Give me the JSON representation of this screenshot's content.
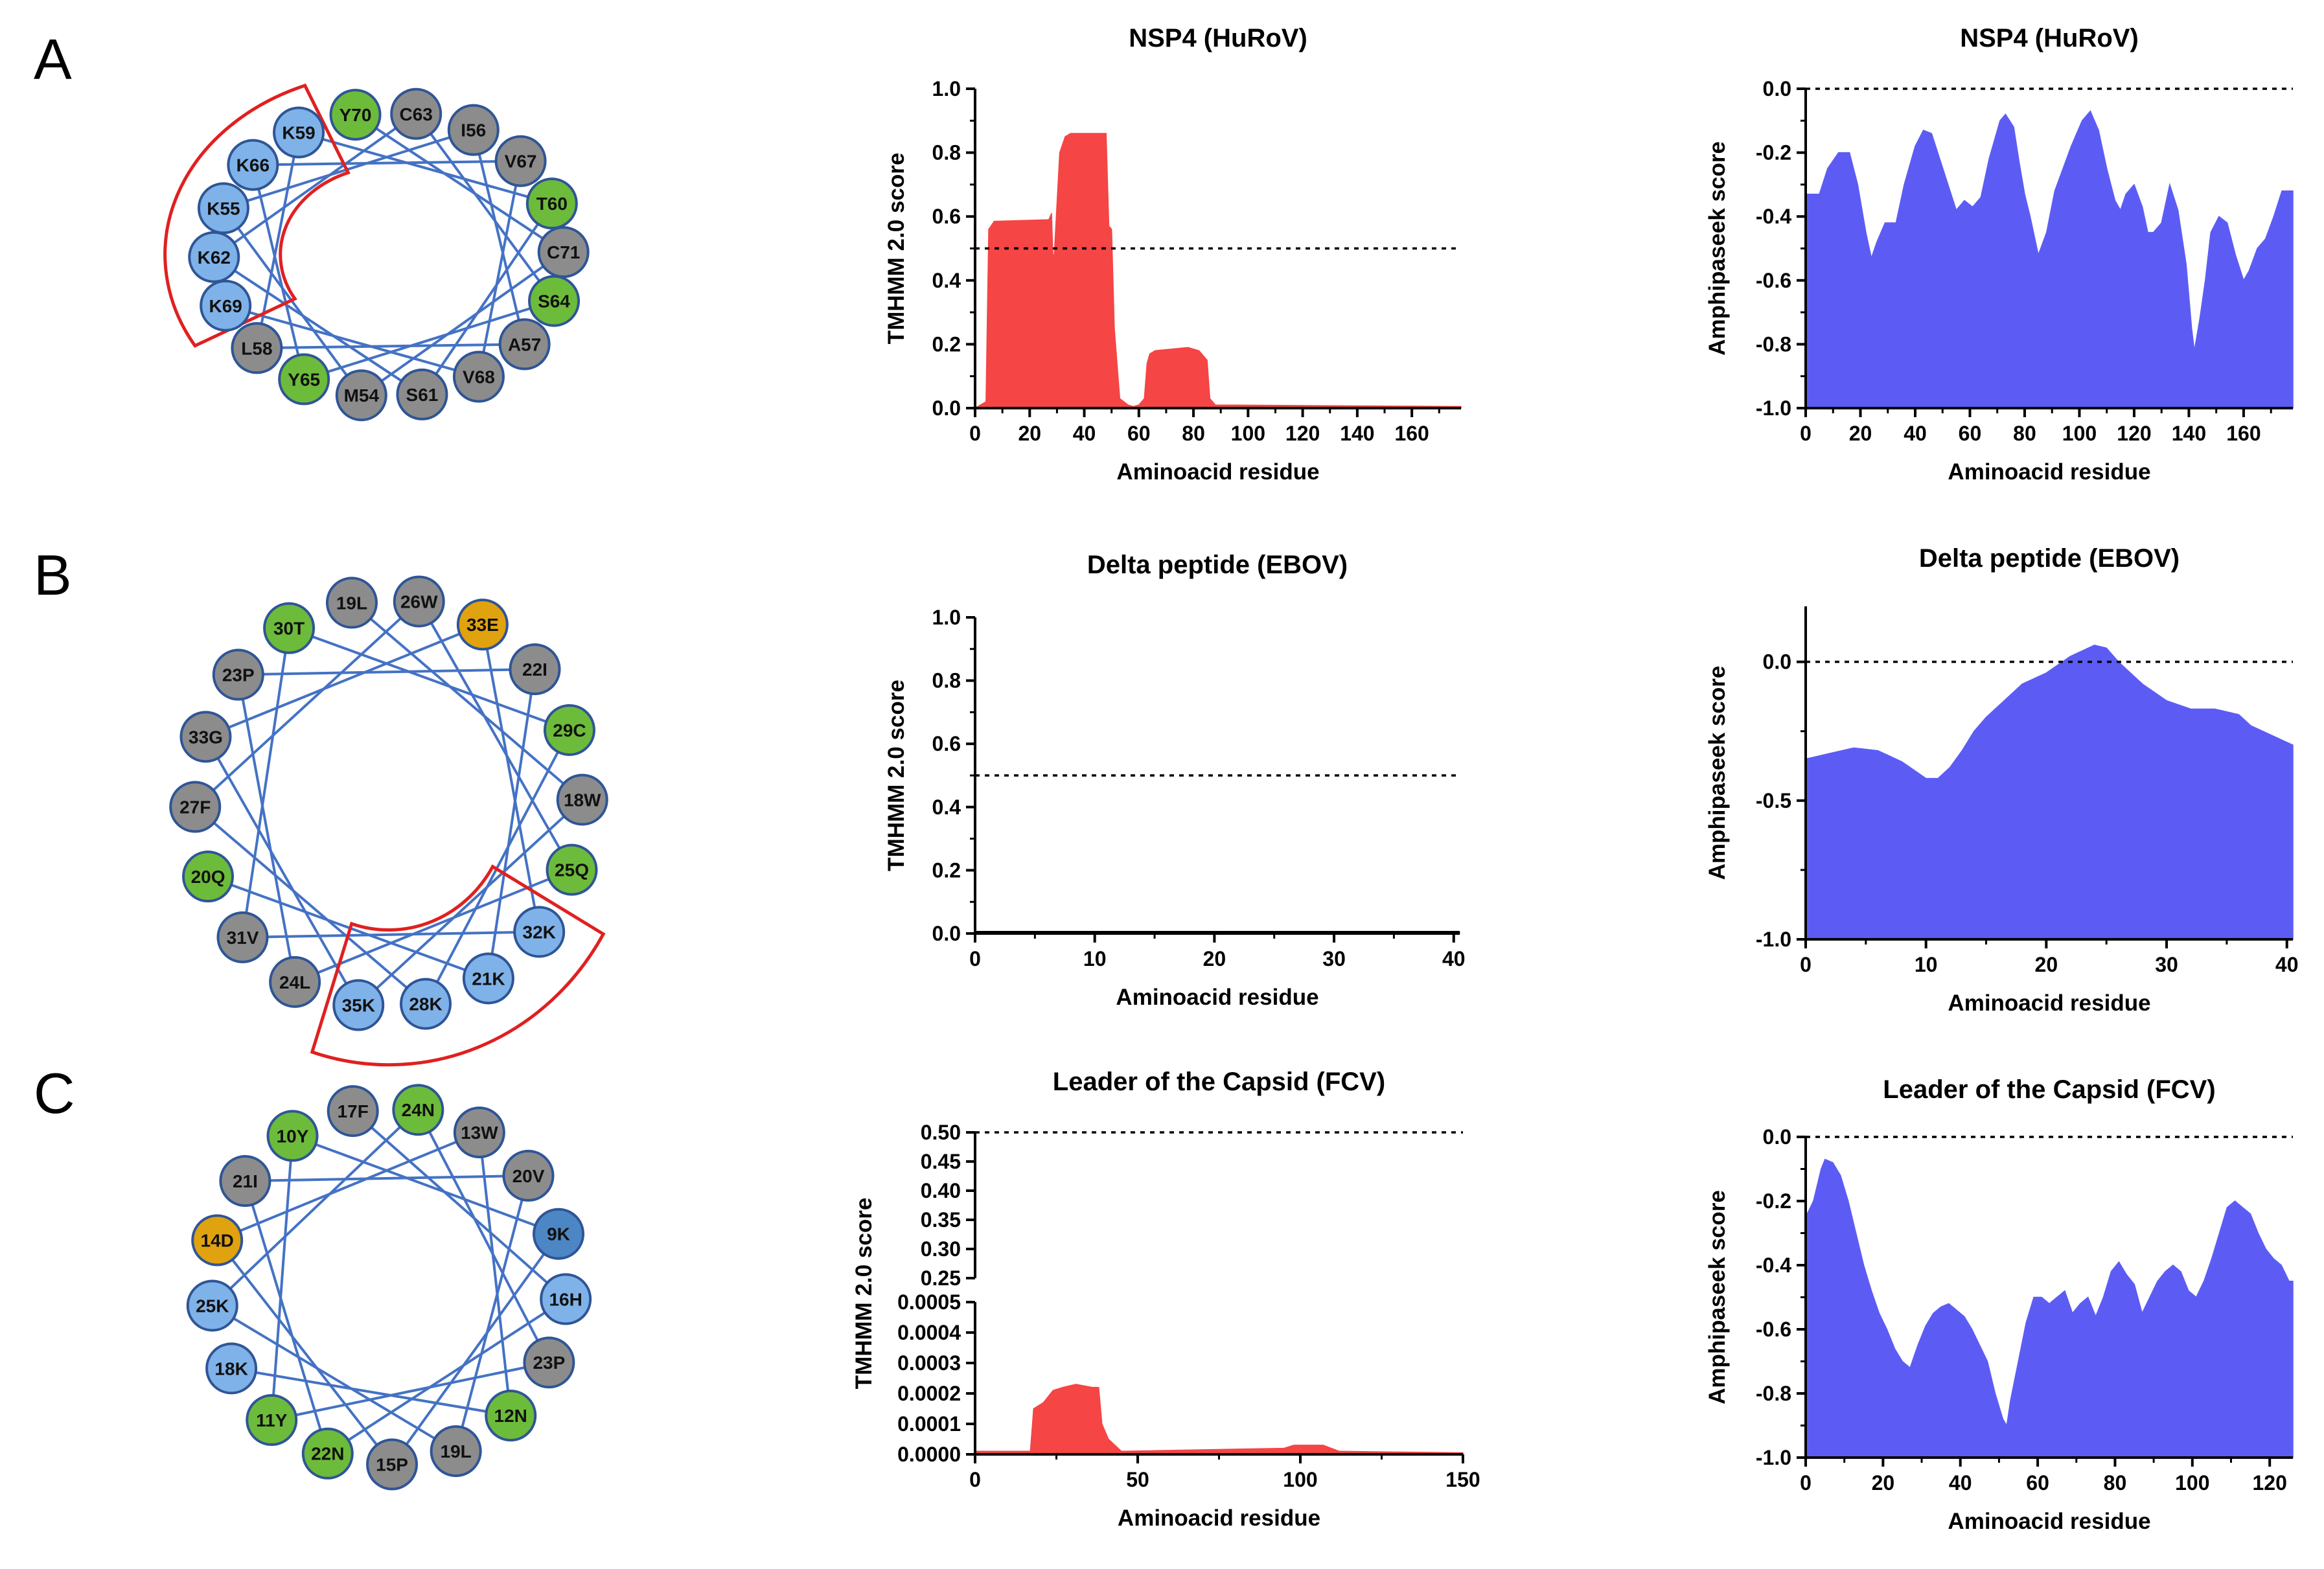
{
  "panels": [
    {
      "letter": "A",
      "helix": {
        "residues": [
          "Y70",
          "C63",
          "I56",
          "V67",
          "T60",
          "C71",
          "S64",
          "A57",
          "V68",
          "S61",
          "M54",
          "Y65",
          "L58",
          "K69",
          "K62",
          "K55",
          "K66",
          "K59"
        ],
        "categories": [
          "green",
          "grey",
          "grey",
          "grey",
          "green",
          "grey",
          "green",
          "grey",
          "grey",
          "grey",
          "grey",
          "green",
          "grey",
          "blue",
          "blue",
          "blue",
          "blue",
          "blue"
        ],
        "highlight": [
          13,
          14,
          15,
          16,
          17
        ]
      }
    },
    {
      "letter": "B",
      "helix": {
        "residues": [
          "19L",
          "26W",
          "33E",
          "22I",
          "29C",
          "18W",
          "25Q",
          "32K",
          "21K",
          "28K",
          "35K",
          "24L",
          "31V",
          "20Q",
          "27F",
          "33G",
          "23P",
          "30T"
        ],
        "categories": [
          "grey",
          "grey",
          "orange",
          "grey",
          "green",
          "grey",
          "green",
          "blue",
          "blue",
          "blue",
          "blue",
          "grey",
          "grey",
          "green",
          "grey",
          "grey",
          "grey",
          "green"
        ],
        "highlight": [
          7,
          8,
          9,
          10
        ]
      }
    },
    {
      "letter": "C",
      "helix": {
        "residues": [
          "17F",
          "24N",
          "13W",
          "20V",
          "9K",
          "16H",
          "23P",
          "12N",
          "19L",
          "15P",
          "22N",
          "11Y",
          "18K",
          "25K",
          "14D",
          "21I",
          "10Y"
        ],
        "categories": [
          "grey",
          "green",
          "grey",
          "grey",
          "darkblue",
          "blue",
          "grey",
          "green",
          "grey",
          "grey",
          "green",
          "green",
          "blue",
          "blue",
          "orange",
          "grey",
          "green"
        ],
        "highlight": []
      }
    }
  ],
  "colors": {
    "green": "#6dbb3a",
    "grey": "#8c8c8c",
    "blue": "#7fb2e8",
    "darkblue": "#4d86c4",
    "orange": "#e0a20f",
    "node_stroke": "#2f5596",
    "line": "#4472c4",
    "tmhmm_fill": "#f54545",
    "amphi_fill": "#5c5cf5",
    "highlight": "#e02020"
  },
  "chart_data": [
    {
      "id": "A-tmhmm",
      "type": "area",
      "title": "NSP4  (HuRoV)",
      "xlabel": "Aminoacid residue",
      "ylabel": "TMHMM 2.0 score",
      "xlim": [
        0,
        178
      ],
      "ylim": [
        0,
        1.0
      ],
      "xticks": [
        0,
        20,
        40,
        60,
        80,
        100,
        120,
        140,
        160
      ],
      "yticks": [
        0.0,
        0.2,
        0.4,
        0.6,
        0.8,
        1.0
      ],
      "ytick_labels": [
        "0.0",
        "0.2",
        "0.4",
        "0.6",
        "0.8",
        "1.0"
      ],
      "threshold": 0.5,
      "points": [
        [
          0,
          0
        ],
        [
          2,
          0.01
        ],
        [
          4,
          0.02
        ],
        [
          5,
          0.56
        ],
        [
          7,
          0.585
        ],
        [
          27,
          0.59
        ],
        [
          28,
          0.61
        ],
        [
          28.5,
          0.48
        ],
        [
          29,
          0.48
        ],
        [
          31,
          0.8
        ],
        [
          33,
          0.85
        ],
        [
          35,
          0.86
        ],
        [
          48,
          0.86
        ],
        [
          49,
          0.57
        ],
        [
          50,
          0.56
        ],
        [
          51,
          0.25
        ],
        [
          53,
          0.03
        ],
        [
          56,
          0.01
        ],
        [
          58,
          0.005
        ],
        [
          60,
          0.01
        ],
        [
          62,
          0.03
        ],
        [
          63,
          0.14
        ],
        [
          64,
          0.17
        ],
        [
          66,
          0.18
        ],
        [
          78,
          0.19
        ],
        [
          82,
          0.18
        ],
        [
          85,
          0.15
        ],
        [
          86,
          0.03
        ],
        [
          88,
          0.01
        ],
        [
          178,
          0.005
        ]
      ]
    },
    {
      "id": "A-amphi",
      "type": "area",
      "title": "NSP4  (HuRoV)",
      "xlabel": "Aminoacid residue",
      "ylabel": "Amphipaseek score",
      "xlim": [
        0,
        178
      ],
      "ylim": [
        -1.0,
        0.0
      ],
      "xticks": [
        0,
        20,
        40,
        60,
        80,
        100,
        120,
        140,
        160
      ],
      "yticks": [
        -1.0,
        -0.8,
        -0.6,
        -0.4,
        -0.2,
        0.0
      ],
      "ytick_labels": [
        "-1.0",
        "-0.8",
        "-0.6",
        "-0.4",
        "-0.2",
        "0.0"
      ],
      "threshold": 0.0,
      "points": [
        [
          0,
          -0.33
        ],
        [
          5,
          -0.33
        ],
        [
          8,
          -0.25
        ],
        [
          12,
          -0.2
        ],
        [
          16,
          -0.2
        ],
        [
          19,
          -0.3
        ],
        [
          22,
          -0.45
        ],
        [
          24,
          -0.53
        ],
        [
          26,
          -0.48
        ],
        [
          29,
          -0.42
        ],
        [
          33,
          -0.42
        ],
        [
          36,
          -0.3
        ],
        [
          40,
          -0.18
        ],
        [
          43,
          -0.13
        ],
        [
          46,
          -0.14
        ],
        [
          49,
          -0.22
        ],
        [
          52,
          -0.3
        ],
        [
          55,
          -0.38
        ],
        [
          58,
          -0.35
        ],
        [
          61,
          -0.37
        ],
        [
          64,
          -0.34
        ],
        [
          67,
          -0.22
        ],
        [
          71,
          -0.1
        ],
        [
          73,
          -0.08
        ],
        [
          76,
          -0.12
        ],
        [
          78,
          -0.23
        ],
        [
          80,
          -0.33
        ],
        [
          82,
          -0.4
        ],
        [
          85,
          -0.52
        ],
        [
          88,
          -0.45
        ],
        [
          91,
          -0.32
        ],
        [
          94,
          -0.25
        ],
        [
          97,
          -0.18
        ],
        [
          101,
          -0.1
        ],
        [
          104,
          -0.07
        ],
        [
          107,
          -0.13
        ],
        [
          110,
          -0.25
        ],
        [
          113,
          -0.35
        ],
        [
          115,
          -0.38
        ],
        [
          117,
          -0.33
        ],
        [
          120,
          -0.3
        ],
        [
          123,
          -0.37
        ],
        [
          125,
          -0.45
        ],
        [
          127,
          -0.45
        ],
        [
          130,
          -0.42
        ],
        [
          133,
          -0.3
        ],
        [
          136,
          -0.38
        ],
        [
          139,
          -0.55
        ],
        [
          141,
          -0.75
        ],
        [
          142,
          -0.82
        ],
        [
          144,
          -0.72
        ],
        [
          146,
          -0.6
        ],
        [
          148,
          -0.45
        ],
        [
          151,
          -0.4
        ],
        [
          154,
          -0.42
        ],
        [
          157,
          -0.52
        ],
        [
          160,
          -0.6
        ],
        [
          162,
          -0.57
        ],
        [
          165,
          -0.5
        ],
        [
          168,
          -0.47
        ],
        [
          171,
          -0.4
        ],
        [
          174,
          -0.32
        ],
        [
          178,
          -0.32
        ]
      ]
    },
    {
      "id": "B-tmhmm",
      "type": "area",
      "title": "Delta peptide (EBOV)",
      "xlabel": "Aminoacid residue",
      "ylabel": "TMHMM 2.0 score",
      "xlim": [
        0,
        40.5
      ],
      "ylim": [
        0,
        1.0
      ],
      "xticks": [
        0,
        10,
        20,
        30,
        40
      ],
      "yticks": [
        0.0,
        0.2,
        0.4,
        0.6,
        0.8,
        1.0
      ],
      "ytick_labels": [
        "0.0",
        "0.2",
        "0.4",
        "0.6",
        "0.8",
        "1.0"
      ],
      "threshold": 0.5,
      "points": [
        [
          0,
          0.004
        ],
        [
          40.5,
          0.004
        ]
      ]
    },
    {
      "id": "B-amphi",
      "type": "area",
      "title": "Delta peptide (EBOV)",
      "xlabel": "Aminoacid residue",
      "ylabel": "Amphipaseek score",
      "xlim": [
        0,
        40.5
      ],
      "ylim": [
        -1.0,
        0.2
      ],
      "xticks": [
        0,
        10,
        20,
        30,
        40
      ],
      "yticks": [
        -1.0,
        -0.5,
        0.0
      ],
      "ytick_labels": [
        "-1.0",
        "-0.5",
        "0.0"
      ],
      "threshold": 0.0,
      "points": [
        [
          0,
          -0.35
        ],
        [
          2,
          -0.33
        ],
        [
          4,
          -0.31
        ],
        [
          6,
          -0.32
        ],
        [
          8,
          -0.36
        ],
        [
          10,
          -0.42
        ],
        [
          11,
          -0.42
        ],
        [
          12,
          -0.38
        ],
        [
          13,
          -0.32
        ],
        [
          14,
          -0.25
        ],
        [
          15,
          -0.2
        ],
        [
          17,
          -0.12
        ],
        [
          18,
          -0.08
        ],
        [
          20,
          -0.04
        ],
        [
          22,
          0.02
        ],
        [
          24,
          0.06
        ],
        [
          25,
          0.05
        ],
        [
          26,
          0.0
        ],
        [
          28,
          -0.08
        ],
        [
          30,
          -0.14
        ],
        [
          32,
          -0.17
        ],
        [
          34,
          -0.17
        ],
        [
          36,
          -0.19
        ],
        [
          37,
          -0.23
        ],
        [
          39,
          -0.27
        ],
        [
          40.5,
          -0.3
        ]
      ]
    },
    {
      "id": "C-tmhmm",
      "type": "area",
      "title": "Leader of the Capsid (FCV)",
      "xlabel": "Aminoacid residue",
      "ylabel": "TMHMM 2.0 score",
      "xlim": [
        0,
        150
      ],
      "ylim": [
        0,
        0.5
      ],
      "broken_axis": true,
      "lower_range": [
        0,
        0.0005
      ],
      "upper_range": [
        0.25,
        0.5
      ],
      "xticks": [
        0,
        50,
        100,
        150
      ],
      "yticks_lower": [
        0,
        0.0001,
        0.0002,
        0.0003,
        0.0004,
        0.0005
      ],
      "ytick_labels_lower": [
        "0.0000",
        "0.0001",
        "0.0002",
        "0.0003",
        "0.0004",
        "0.0005"
      ],
      "yticks_upper": [
        0.25,
        0.3,
        0.35,
        0.4,
        0.45,
        0.5
      ],
      "ytick_labels_upper": [
        "0.25",
        "0.30",
        "0.35",
        "0.40",
        "0.45",
        "0.50"
      ],
      "threshold": 0.5,
      "points": [
        [
          0,
          1e-05
        ],
        [
          17,
          1e-05
        ],
        [
          18,
          0.00015
        ],
        [
          21,
          0.00017
        ],
        [
          24,
          0.00021
        ],
        [
          27,
          0.00022
        ],
        [
          31,
          0.00023
        ],
        [
          36,
          0.00022
        ],
        [
          38,
          0.00022
        ],
        [
          39,
          0.0001
        ],
        [
          41,
          5e-05
        ],
        [
          43,
          3e-05
        ],
        [
          45,
          1e-05
        ],
        [
          95,
          2e-05
        ],
        [
          98,
          3e-05
        ],
        [
          107,
          3e-05
        ],
        [
          112,
          1e-05
        ],
        [
          150,
          5e-06
        ]
      ]
    },
    {
      "id": "C-amphi",
      "type": "area",
      "title": "Leader of the Capsid (FCV)",
      "xlabel": "Aminoacid residue",
      "ylabel": "Amphipaseek score",
      "xlim": [
        0,
        126
      ],
      "ylim": [
        -1.0,
        0.0
      ],
      "xticks": [
        0,
        20,
        40,
        60,
        80,
        100,
        120
      ],
      "yticks": [
        -1.0,
        -0.8,
        -0.6,
        -0.4,
        -0.2,
        0.0
      ],
      "ytick_labels": [
        "-1.0",
        "-0.8",
        "-0.6",
        "-0.4",
        "-0.2",
        "0.0"
      ],
      "threshold": 0.0,
      "points": [
        [
          0,
          -0.25
        ],
        [
          2,
          -0.2
        ],
        [
          4,
          -0.1
        ],
        [
          5,
          -0.07
        ],
        [
          7,
          -0.08
        ],
        [
          9,
          -0.12
        ],
        [
          11,
          -0.2
        ],
        [
          13,
          -0.3
        ],
        [
          15,
          -0.4
        ],
        [
          17,
          -0.48
        ],
        [
          19,
          -0.55
        ],
        [
          21,
          -0.6
        ],
        [
          23,
          -0.66
        ],
        [
          25,
          -0.7
        ],
        [
          27,
          -0.72
        ],
        [
          29,
          -0.65
        ],
        [
          31,
          -0.59
        ],
        [
          33,
          -0.55
        ],
        [
          35,
          -0.53
        ],
        [
          37,
          -0.52
        ],
        [
          39,
          -0.54
        ],
        [
          41,
          -0.56
        ],
        [
          43,
          -0.6
        ],
        [
          45,
          -0.65
        ],
        [
          47,
          -0.7
        ],
        [
          49,
          -0.8
        ],
        [
          51,
          -0.88
        ],
        [
          52,
          -0.9
        ],
        [
          53,
          -0.82
        ],
        [
          55,
          -0.7
        ],
        [
          57,
          -0.58
        ],
        [
          59,
          -0.5
        ],
        [
          61,
          -0.5
        ],
        [
          63,
          -0.52
        ],
        [
          65,
          -0.5
        ],
        [
          67,
          -0.48
        ],
        [
          69,
          -0.55
        ],
        [
          71,
          -0.52
        ],
        [
          73,
          -0.5
        ],
        [
          75,
          -0.56
        ],
        [
          77,
          -0.5
        ],
        [
          79,
          -0.42
        ],
        [
          81,
          -0.39
        ],
        [
          83,
          -0.43
        ],
        [
          85,
          -0.46
        ],
        [
          87,
          -0.55
        ],
        [
          89,
          -0.5
        ],
        [
          91,
          -0.45
        ],
        [
          93,
          -0.42
        ],
        [
          95,
          -0.4
        ],
        [
          97,
          -0.42
        ],
        [
          99,
          -0.48
        ],
        [
          101,
          -0.5
        ],
        [
          103,
          -0.45
        ],
        [
          105,
          -0.38
        ],
        [
          107,
          -0.3
        ],
        [
          109,
          -0.22
        ],
        [
          111,
          -0.2
        ],
        [
          113,
          -0.22
        ],
        [
          115,
          -0.24
        ],
        [
          117,
          -0.3
        ],
        [
          119,
          -0.35
        ],
        [
          121,
          -0.38
        ],
        [
          123,
          -0.4
        ],
        [
          125,
          -0.45
        ],
        [
          126,
          -0.45
        ]
      ]
    }
  ]
}
